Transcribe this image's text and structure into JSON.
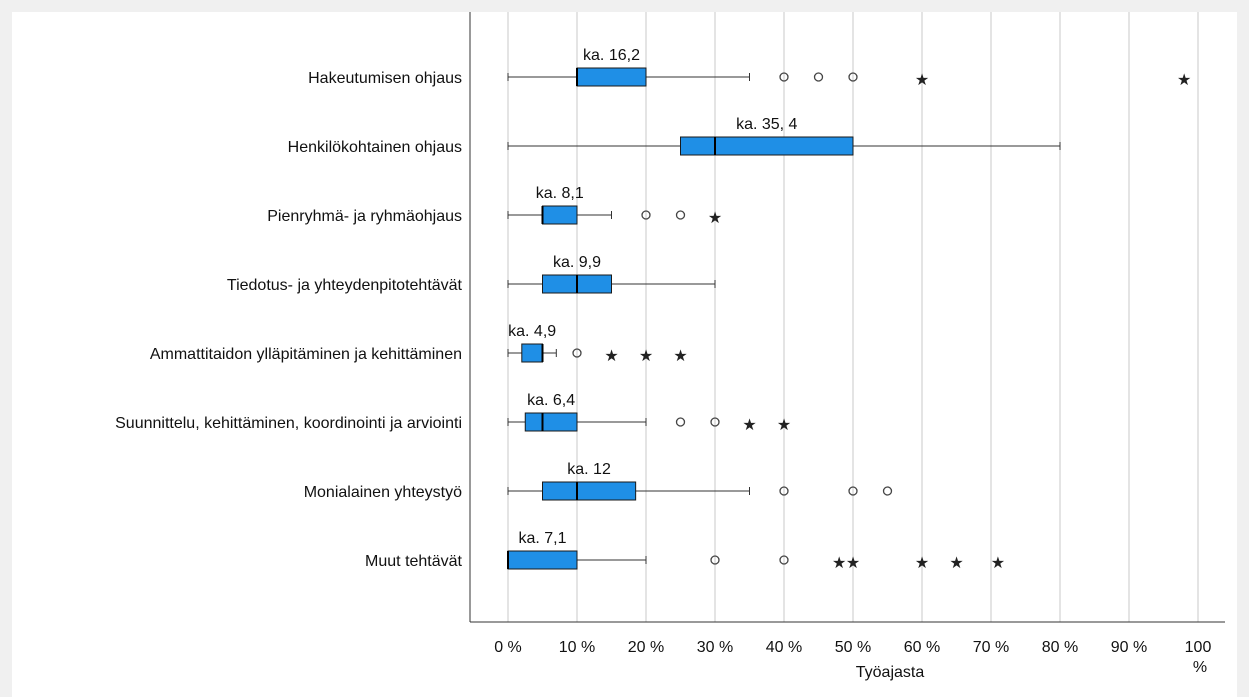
{
  "chart_data": {
    "type": "boxplot",
    "title": "",
    "xlabel": "Työajasta",
    "ylabel": "",
    "xlim": [
      0,
      100
    ],
    "ticks": [
      0,
      10,
      20,
      30,
      40,
      50,
      60,
      70,
      80,
      90,
      100
    ],
    "tick_labels": [
      "0 %",
      "10 %",
      "20 %",
      "30 %",
      "40 %",
      "50 %",
      "60 %",
      "70 %",
      "80 %",
      "90 %",
      "100 %"
    ],
    "grid": "vertical",
    "box_color": "#1f8fe6",
    "categories": [
      {
        "label": "Hakeutumisen ohjaus",
        "whisker_low": 0,
        "q1": 10,
        "median": 10,
        "q3": 20,
        "whisker_high": 35,
        "outliers": [
          40,
          45,
          50
        ],
        "extremes": [
          60,
          98
        ],
        "mean_label": "ka. 16,2"
      },
      {
        "label": "Henkilökohtainen ohjaus",
        "whisker_low": 0,
        "q1": 25,
        "median": 30,
        "q3": 50,
        "whisker_high": 80,
        "outliers": [],
        "extremes": [],
        "mean_label": "ka. 35, 4"
      },
      {
        "label": "Pienryhmä- ja ryhmäohjaus",
        "whisker_low": 0,
        "q1": 5,
        "median": 5,
        "q3": 10,
        "whisker_high": 15,
        "outliers": [
          20,
          25
        ],
        "extremes": [
          30
        ],
        "mean_label": "ka. 8,1"
      },
      {
        "label": "Tiedotus- ja yhteydenpitotehtävät",
        "whisker_low": 0,
        "q1": 5,
        "median": 10,
        "q3": 15,
        "whisker_high": 30,
        "outliers": [],
        "extremes": [],
        "mean_label": "ka. 9,9"
      },
      {
        "label": "Ammattitaidon ylläpitäminen ja kehittäminen",
        "whisker_low": 0,
        "q1": 2,
        "median": 5,
        "q3": 5,
        "whisker_high": 7,
        "outliers": [
          10
        ],
        "extremes": [
          15,
          20,
          25
        ],
        "mean_label": "ka. 4,9"
      },
      {
        "label": "Suunnittelu, kehittäminen, koordinointi ja arviointi",
        "whisker_low": 0,
        "q1": 2.5,
        "median": 5,
        "q3": 10,
        "whisker_high": 20,
        "outliers": [
          25,
          30
        ],
        "extremes": [
          35,
          40
        ],
        "mean_label": "ka. 6,4"
      },
      {
        "label": "Monialainen yhteystyö",
        "whisker_low": 0,
        "q1": 5,
        "median": 10,
        "q3": 18.5,
        "whisker_high": 35,
        "outliers": [
          40,
          50,
          55
        ],
        "extremes": [],
        "mean_label": "ka. 12"
      },
      {
        "label": "Muut tehtävät",
        "whisker_low": 0,
        "q1": 0,
        "median": 0,
        "q3": 10,
        "whisker_high": 20,
        "outliers": [
          30,
          40
        ],
        "extremes": [
          48,
          50,
          60,
          65,
          71
        ],
        "mean_label": "ka. 7,1"
      }
    ]
  }
}
